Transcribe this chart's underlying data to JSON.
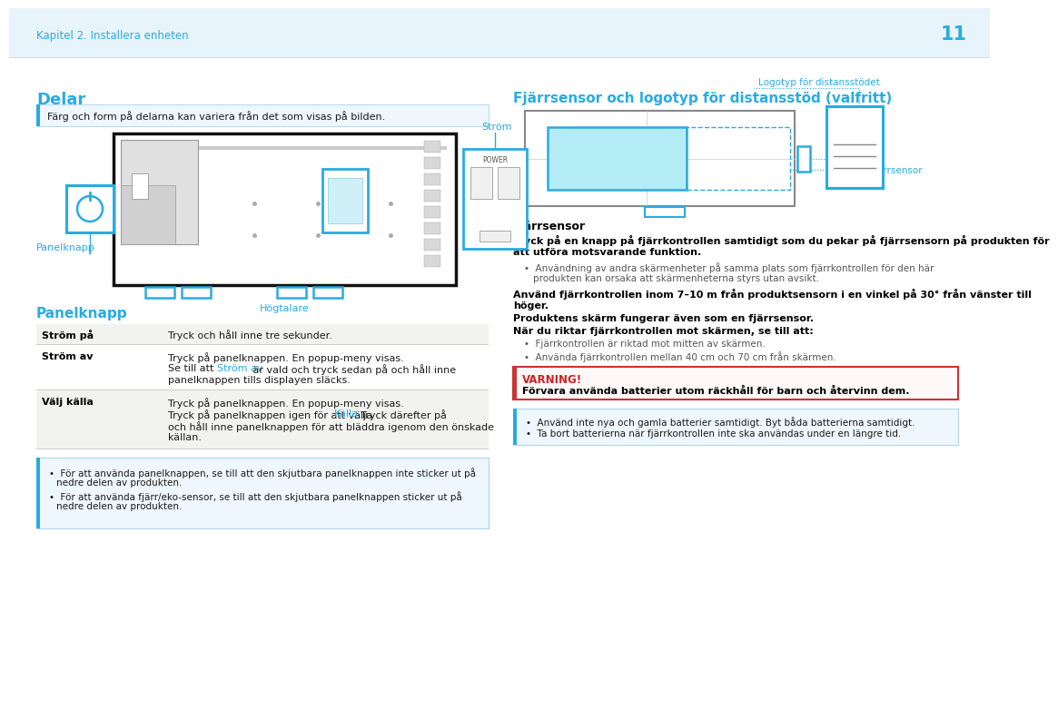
{
  "page_number": "11",
  "header_text": "Kapitel 2. Installera enheten",
  "header_bg": "#e8f4fc",
  "bg_color": "#ffffff",
  "cyan_color": "#29abe2",
  "dark_text": "#1a1a1a",
  "light_text": "#555555",
  "bold_text": "#000000",
  "section1_title": "Delar",
  "section1_note": "Färg och form på delarna kan variera från det som visas på bilden.",
  "label_panelknapp": "Panelknapp",
  "label_strom": "Ström",
  "label_hogtalare": "Högtalare",
  "section2_title": "Panelknapp",
  "section3_title": "Fjärrsensor och logotyp för distansstöd (valfritt)",
  "label_logotyp": "Logotyp för distansstödet",
  "label_fjarrsensor": "Fjärrsensor",
  "fjarrsensor_heading": "Fjärrsensor",
  "fjarrsensor_text1a": "Tryck på en knapp på fjärrkontrollen samtidigt som du pekar på fjärrsensorn på produkten för",
  "fjarrsensor_text1b": "att utföra motsvarande funktion.",
  "fjarrsensor_bullet1a": "Användning av andra skärmenheter på samma plats som fjärrkontrollen för den här",
  "fjarrsensor_bullet1b": "produkten kan orsaka att skärmenheterna styrs utan avsikt.",
  "fjarrsensor_text2a": "Använd fjärrkontrollen inom 7–10 m från produktsensorn i en vinkel på 30° från vänster till",
  "fjarrsensor_text2b": "höger.",
  "fjarrsensor_text3a": "Produktens skärm fungerar även som en fjärrsensor.",
  "fjarrsensor_text3b": "När du riktar fjärrkontrollen mot skärmen, se till att:",
  "fjarrsensor_bullet2": "Fjärrkontrollen är riktad mot mitten av skärmen.",
  "fjarrsensor_bullet3": "Använda fjärrkontrollen mellan 40 cm och 70 cm från skärmen.",
  "warning_title": "VARNING!",
  "warning_text": "Förvara använda batterier utom räckhåll för barn och återvinn dem.",
  "note_b1": "Använd inte nya och gamla batterier samtidigt. Byt båda batterierna samtidigt.",
  "note_b2": "Ta bort batterierna när fjärrkontrollen inte ska användas under en längre tid.",
  "info_b1a": "För att använda panelknappen, se till att den skjutbara panelknappen inte sticker ut på",
  "info_b1b": "nedre delen av produkten.",
  "info_b2a": "För att använda fjärr/eko-sensor, se till att den skjutbara panelknappen sticker ut på",
  "info_b2b": "nedre delen av produkten.",
  "table_row1_key": "Ström på",
  "table_row1_val": "Tryck och håll inne tre sekunder.",
  "table_row2_key": "Ström av",
  "table_row2_v1": "Tryck på panelknappen. En popup-meny visas.",
  "table_row2_v2a": "Se till att ",
  "table_row2_v2b": "Ström av",
  "table_row2_v2c": " är vald och tryck sedan på och håll inne",
  "table_row2_v3": "panelknappen tills displayen släcks.",
  "table_row3_key": "Välj källa",
  "table_row3_v1": "Tryck på panelknappen. En popup-meny visas.",
  "table_row3_v2a": "Tryck på panelknappen igen för att välja ",
  "table_row3_v2b": "Källa",
  "table_row3_v2c": ". Tryck därefter på",
  "table_row3_v3": "och håll inne panelknappen för att bläddra igenom den önskade",
  "table_row3_v4": "källan."
}
